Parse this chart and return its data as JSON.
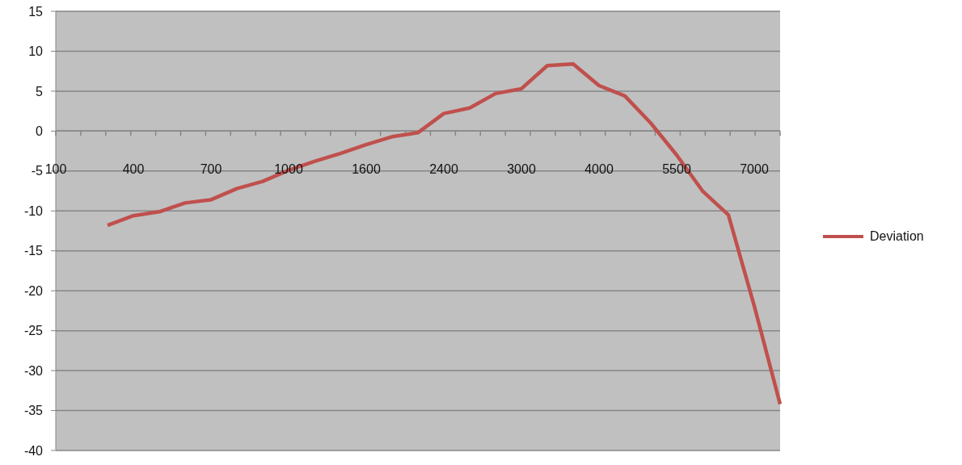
{
  "chart_data": {
    "type": "line",
    "categories": [
      "100",
      null,
      null,
      "400",
      null,
      null,
      "700",
      null,
      null,
      "1000",
      null,
      null,
      "1600",
      null,
      null,
      "2400",
      null,
      null,
      "3000",
      null,
      null,
      "4000",
      null,
      null,
      "5500",
      null,
      null,
      "7000",
      null
    ],
    "series": [
      {
        "name": "Deviation",
        "color": "#c0504d",
        "values": [
          null,
          null,
          -11.8,
          -10.6,
          -10.1,
          -9.0,
          -8.6,
          -7.2,
          -6.3,
          -4.9,
          -3.8,
          -2.8,
          -1.7,
          -0.7,
          -0.2,
          2.2,
          2.9,
          4.7,
          5.3,
          8.2,
          8.4,
          5.7,
          4.4,
          1.0,
          -3.0,
          -7.5,
          -10.5,
          -21.9,
          -34.2
        ]
      }
    ],
    "ylim": [
      -40,
      15
    ],
    "yticks": [
      -40,
      -35,
      -30,
      -25,
      -20,
      -15,
      -10,
      -5,
      0,
      5,
      10,
      15
    ],
    "grid": "y",
    "legend": "right",
    "marker": "none",
    "line_style": "solid"
  }
}
